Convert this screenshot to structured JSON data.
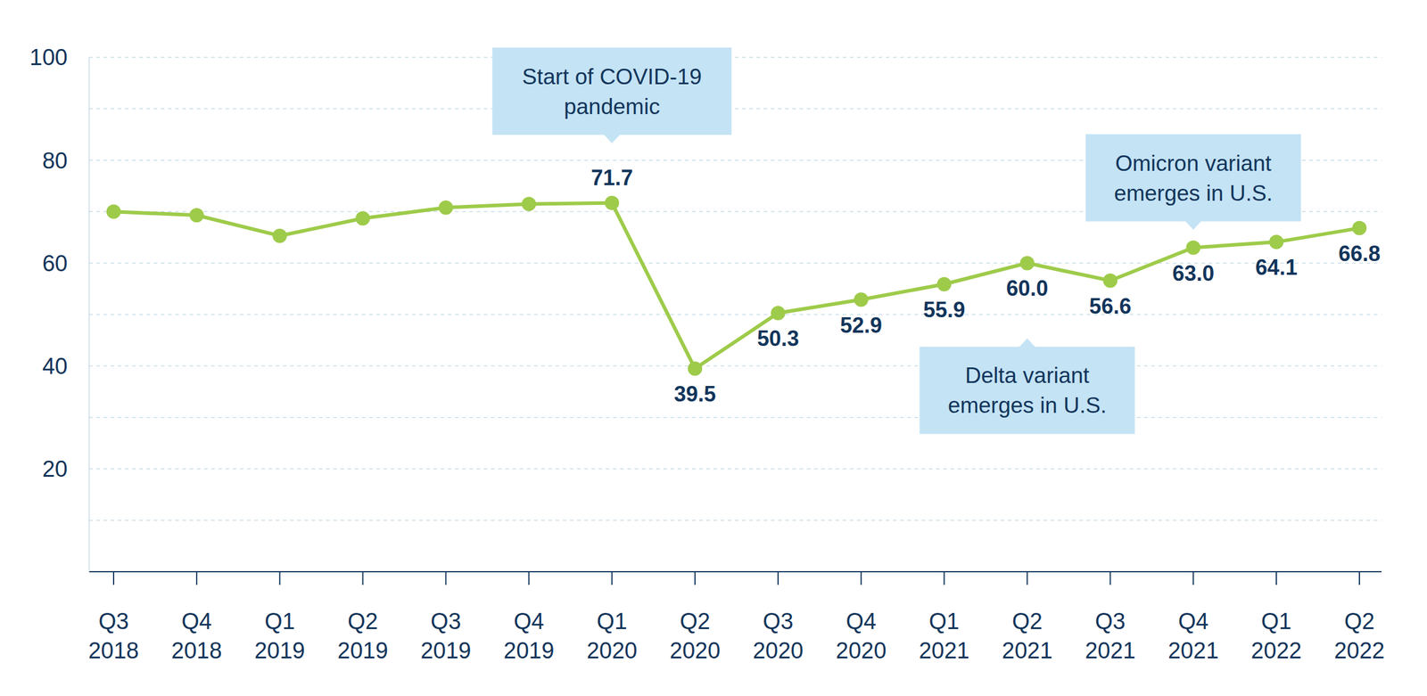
{
  "chart_data": {
    "type": "line",
    "categories": [
      "Q3 2018",
      "Q4 2018",
      "Q1 2019",
      "Q2 2019",
      "Q3 2019",
      "Q4 2019",
      "Q1 2020",
      "Q2 2020",
      "Q3 2020",
      "Q4 2020",
      "Q1 2021",
      "Q2 2021",
      "Q3 2021",
      "Q4 2021",
      "Q1 2022",
      "Q2 2022"
    ],
    "values": [
      70,
      69.3,
      65.3,
      68.7,
      70.8,
      71.5,
      71.7,
      39.5,
      50.3,
      52.9,
      55.9,
      60,
      56.6,
      63,
      64.1,
      66.8
    ],
    "value_labels": [
      null,
      null,
      null,
      null,
      null,
      null,
      "71.7",
      "39.5",
      "50.3",
      "52.9",
      "55.9",
      "60.0",
      "56.6",
      "63.0",
      "64.1",
      "66.8"
    ],
    "data_labels": true,
    "color": "#9ecb4a",
    "marker": "circle",
    "ylim": [
      0,
      100
    ],
    "yticks": [
      20,
      40,
      60,
      80,
      100
    ],
    "grid": true,
    "annotations": [
      {
        "text": "Start of COVID-19 pandemic",
        "x": "Q1 2020",
        "position": "above"
      },
      {
        "text": "Delta variant emerges in U.S.",
        "x": "Q2 2021",
        "position": "below"
      },
      {
        "text": "Omicron variant emerges in U.S.",
        "x": "Q4 2021",
        "position": "above"
      }
    ]
  }
}
